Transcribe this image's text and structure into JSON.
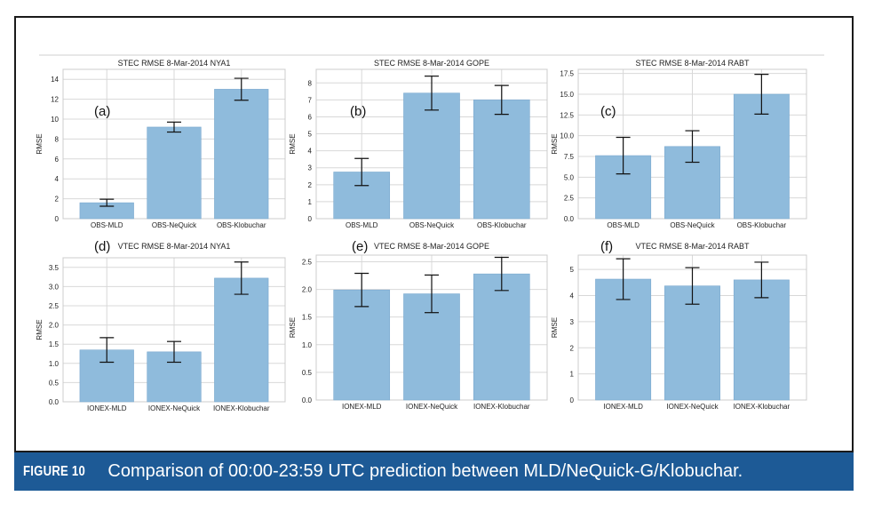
{
  "caption": {
    "label": "FIGURE 10",
    "text": "Comparison of 00:00-23:59 UTC prediction between MLD/NeQuick-G/Klobuchar."
  },
  "colors": {
    "bar": "#8fbbdc",
    "bar_edge": "#7aa9cf",
    "error": "#111111",
    "grid": "#d8d8d8",
    "caption_bg": "#1d5a96"
  },
  "chart_data": [
    {
      "type": "bar",
      "panel": "(a)",
      "title": "STEC RMSE 8-Mar-2014  NYA1",
      "ylabel": "RMSE",
      "categories": [
        "OBS-MLD",
        "OBS-NeQuick",
        "OBS-Klobuchar"
      ],
      "values": [
        1.6,
        9.2,
        13.0
      ],
      "errors": [
        0.35,
        0.5,
        1.1
      ],
      "ylim": [
        0,
        15
      ],
      "yticks": [
        "0",
        "2",
        "4",
        "6",
        "8",
        "10",
        "12",
        "14"
      ],
      "ytick_values": [
        0,
        2,
        4,
        6,
        8,
        10,
        12,
        14
      ],
      "grid": true
    },
    {
      "type": "bar",
      "panel": "(b)",
      "title": "STEC RMSE 8-Mar-2014 GOPE",
      "ylabel": "RMSE",
      "categories": [
        "OBS-MLD",
        "OBS-NeQuick",
        "OBS-Klobuchar"
      ],
      "values": [
        2.75,
        7.4,
        7.0
      ],
      "errors": [
        0.8,
        1.0,
        0.85
      ],
      "ylim": [
        0,
        8.8
      ],
      "yticks": [
        "0",
        "1",
        "2",
        "3",
        "4",
        "5",
        "6",
        "7",
        "8"
      ],
      "ytick_values": [
        0,
        1,
        2,
        3,
        4,
        5,
        6,
        7,
        8
      ],
      "grid": true
    },
    {
      "type": "bar",
      "panel": "(c)",
      "title": "STEC RMSE 8-Mar-2014  RABT",
      "ylabel": "RMSE",
      "categories": [
        "OBS-MLD",
        "OBS-NeQuick",
        "OBS-Klobuchar"
      ],
      "values": [
        7.6,
        8.7,
        15.0
      ],
      "errors": [
        2.2,
        1.9,
        2.4
      ],
      "ylim": [
        0,
        18
      ],
      "yticks": [
        "0.0",
        "2.5",
        "5.0",
        "7.5",
        "10.0",
        "12.5",
        "15.0",
        "17.5"
      ],
      "ytick_values": [
        0,
        2.5,
        5,
        7.5,
        10,
        12.5,
        15,
        17.5
      ],
      "grid": true
    },
    {
      "type": "bar",
      "panel": "(d)",
      "title": "VTEC RMSE 8-Mar-2014 NYA1",
      "ylabel": "RMSE",
      "categories": [
        "IONEX-MLD",
        "IONEX-NeQuick",
        "IONEX-Klobuchar"
      ],
      "values": [
        1.35,
        1.3,
        3.22
      ],
      "errors": [
        0.32,
        0.27,
        0.42
      ],
      "ylim": [
        0,
        3.75
      ],
      "yticks": [
        "0.0",
        "0.5",
        "1.0",
        "1.5",
        "2.0",
        "2.5",
        "3.0",
        "3.5"
      ],
      "ytick_values": [
        0,
        0.5,
        1,
        1.5,
        2,
        2.5,
        3,
        3.5
      ],
      "grid": true
    },
    {
      "type": "bar",
      "panel": "(e)",
      "title": "VTEC RMSE 8-Mar-2014 GOPE",
      "ylabel": "RMSE",
      "categories": [
        "IONEX-MLD",
        "IONEX-NeQuick",
        "IONEX-Klobuchar"
      ],
      "values": [
        1.99,
        1.92,
        2.28
      ],
      "errors": [
        0.3,
        0.34,
        0.3
      ],
      "ylim": [
        0,
        2.62
      ],
      "yticks": [
        "0.0",
        "0.5",
        "1.0",
        "1.5",
        "2.0",
        "2.5"
      ],
      "ytick_values": [
        0,
        0.5,
        1,
        1.5,
        2,
        2.5
      ],
      "grid": true
    },
    {
      "type": "bar",
      "panel": "(f)",
      "title": "VTEC RMSE 8-Mar-2014  RABT",
      "ylabel": "RMSE",
      "categories": [
        "IONEX-MLD",
        "IONEX-NeQuick",
        "IONEX-Klobuchar"
      ],
      "values": [
        4.63,
        4.37,
        4.6
      ],
      "errors": [
        0.78,
        0.7,
        0.68
      ],
      "ylim": [
        0,
        5.55
      ],
      "yticks": [
        "0",
        "1",
        "2",
        "3",
        "4",
        "5"
      ],
      "ytick_values": [
        0,
        1,
        2,
        3,
        4,
        5
      ],
      "grid": true
    }
  ]
}
